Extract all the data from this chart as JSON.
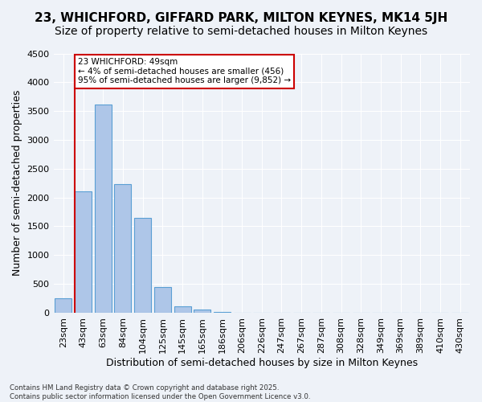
{
  "title1": "23, WHICHFORD, GIFFARD PARK, MILTON KEYNES, MK14 5JH",
  "title2": "Size of property relative to semi-detached houses in Milton Keynes",
  "xlabel": "Distribution of semi-detached houses by size in Milton Keynes",
  "ylabel": "Number of semi-detached properties",
  "bar_labels": [
    "23sqm",
    "43sqm",
    "63sqm",
    "84sqm",
    "104sqm",
    "125sqm",
    "145sqm",
    "165sqm",
    "186sqm",
    "206sqm",
    "226sqm",
    "247sqm",
    "267sqm",
    "287sqm",
    "308sqm",
    "328sqm",
    "349sqm",
    "369sqm",
    "389sqm",
    "410sqm",
    "430sqm"
  ],
  "bar_values": [
    250,
    2100,
    3620,
    2230,
    1640,
    440,
    110,
    50,
    20,
    0,
    0,
    0,
    0,
    0,
    0,
    0,
    0,
    0,
    0,
    0,
    0
  ],
  "bar_color": "#aec6e8",
  "bar_edge_color": "#5a9fd4",
  "ylim": [
    0,
    4500
  ],
  "yticks": [
    0,
    500,
    1000,
    1500,
    2000,
    2500,
    3000,
    3500,
    4000,
    4500
  ],
  "vline_x": 0.575,
  "annotation_text": "23 WHICHFORD: 49sqm\n← 4% of semi-detached houses are smaller (456)\n95% of semi-detached houses are larger (9,852) →",
  "annotation_box_color": "#ffffff",
  "annotation_edge_color": "#cc0000",
  "vline_color": "#cc0000",
  "footer1": "Contains HM Land Registry data © Crown copyright and database right 2025.",
  "footer2": "Contains public sector information licensed under the Open Government Licence v3.0.",
  "bg_color": "#eef2f8",
  "grid_color": "#ffffff",
  "title_fontsize": 11,
  "subtitle_fontsize": 10,
  "axis_label_fontsize": 9,
  "tick_fontsize": 8
}
